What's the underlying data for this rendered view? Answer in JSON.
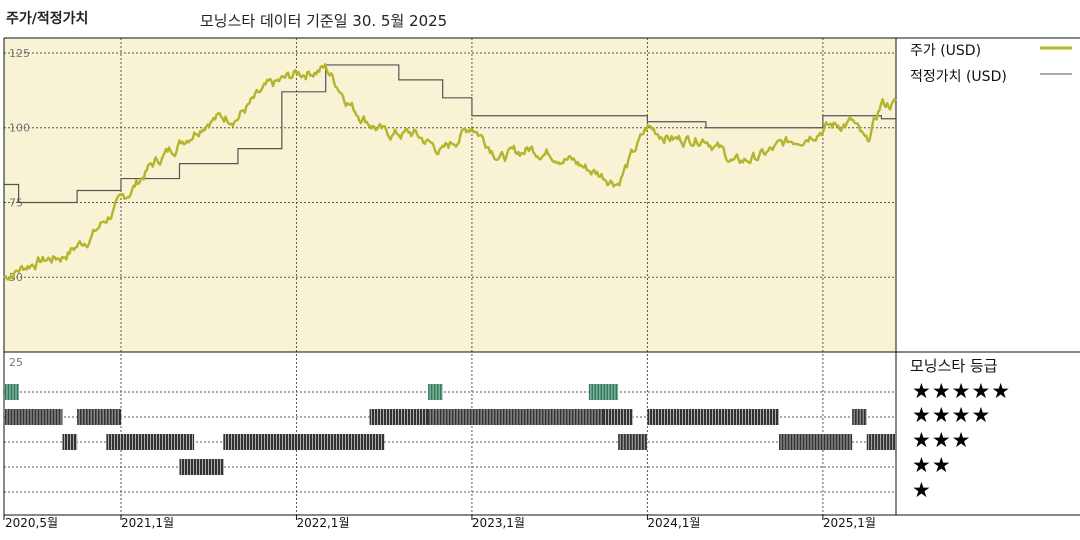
{
  "header": {
    "title": "주가/적정가치",
    "subtitle": "모닝스타 데이터 기준일 30. 5월 2025"
  },
  "legend": {
    "price_label": "주가 (USD)",
    "fair_value_label": "적정가치 (USD)",
    "price_color": "#b3b52c",
    "fair_value_color": "#555555"
  },
  "rating_panel": {
    "title": "모닝스타 등급",
    "stars": [
      "★★★★★",
      "★★★★",
      "★★★",
      "★★",
      "★"
    ],
    "top_tick": "25"
  },
  "colors": {
    "upper_bg": "#f8f3d5",
    "five_star": "#2f7a5a",
    "rating_bar": "#333333"
  },
  "chart_data": {
    "type": "line",
    "title": "",
    "ylim": [
      25,
      130
    ],
    "yticks": [
      "125",
      "100",
      "75",
      "50"
    ],
    "xticks": [
      "2020,5월",
      "2021,1월",
      "2022,1월",
      "2023,1월",
      "2024,1월",
      "2025,1월"
    ],
    "grid": true,
    "legend_position": "right",
    "series": [
      {
        "name": "주가 (USD)",
        "points": [
          [
            "2020-05",
            50
          ],
          [
            "2020-07",
            55
          ],
          [
            "2020-09",
            57
          ],
          [
            "2020-11",
            64
          ],
          [
            "2021-01",
            75
          ],
          [
            "2021-03",
            87
          ],
          [
            "2021-05",
            95
          ],
          [
            "2021-07",
            103
          ],
          [
            "2021-09",
            104
          ],
          [
            "2021-11",
            113
          ],
          [
            "2022-01",
            118
          ],
          [
            "2022-03",
            120
          ],
          [
            "2022-05",
            106
          ],
          [
            "2022-07",
            98
          ],
          [
            "2022-09",
            98
          ],
          [
            "2022-11",
            92
          ],
          [
            "2023-01",
            101
          ],
          [
            "2023-03",
            90
          ],
          [
            "2023-05",
            93
          ],
          [
            "2023-07",
            91
          ],
          [
            "2023-09",
            86
          ],
          [
            "2023-11",
            82
          ],
          [
            "2024-01",
            100
          ],
          [
            "2024-03",
            96
          ],
          [
            "2024-05",
            97
          ],
          [
            "2024-07",
            88
          ],
          [
            "2024-09",
            91
          ],
          [
            "2024-11",
            96
          ],
          [
            "2025-01",
            100
          ],
          [
            "2025-03",
            102
          ],
          [
            "2025-04",
            94
          ],
          [
            "2025-05",
            108
          ]
        ]
      },
      {
        "name": "적정가치 (USD)",
        "points": [
          [
            "2020-05",
            81
          ],
          [
            "2020-06",
            75
          ],
          [
            "2020-10",
            79
          ],
          [
            "2021-01",
            83
          ],
          [
            "2021-05",
            88
          ],
          [
            "2021-09",
            93
          ],
          [
            "2021-12",
            112
          ],
          [
            "2022-03",
            121
          ],
          [
            "2022-08",
            116
          ],
          [
            "2022-11",
            110
          ],
          [
            "2023-01",
            104
          ],
          [
            "2024-01",
            102
          ],
          [
            "2024-05",
            100
          ],
          [
            "2025-01",
            104
          ],
          [
            "2025-05",
            103
          ]
        ]
      }
    ],
    "rating_history": [
      {
        "stars": 5,
        "periods": [
          [
            "2020-05",
            "2020-05"
          ],
          [
            "2022-10",
            "2022-10"
          ],
          [
            "2023-09",
            "2023-10"
          ]
        ]
      },
      {
        "stars": 4,
        "periods": [
          [
            "2020-05",
            "2020-08"
          ],
          [
            "2020-10",
            "2020-12"
          ],
          [
            "2022-06",
            "2022-10"
          ],
          [
            "2022-10",
            "2023-10"
          ],
          [
            "2023-10",
            "2023-11"
          ],
          [
            "2024-01",
            "2024-09"
          ],
          [
            "2025-03",
            "2025-03"
          ]
        ]
      },
      {
        "stars": 3,
        "periods": [
          [
            "2020-09",
            "2020-09"
          ],
          [
            "2020-12",
            "2021-05"
          ],
          [
            "2021-08",
            "2022-06"
          ],
          [
            "2023-11",
            "2023-12"
          ],
          [
            "2024-10",
            "2025-02"
          ],
          [
            "2025-04",
            "2025-05"
          ]
        ]
      },
      {
        "stars": 2,
        "periods": [
          [
            "2021-05",
            "2021-07"
          ]
        ]
      }
    ]
  }
}
